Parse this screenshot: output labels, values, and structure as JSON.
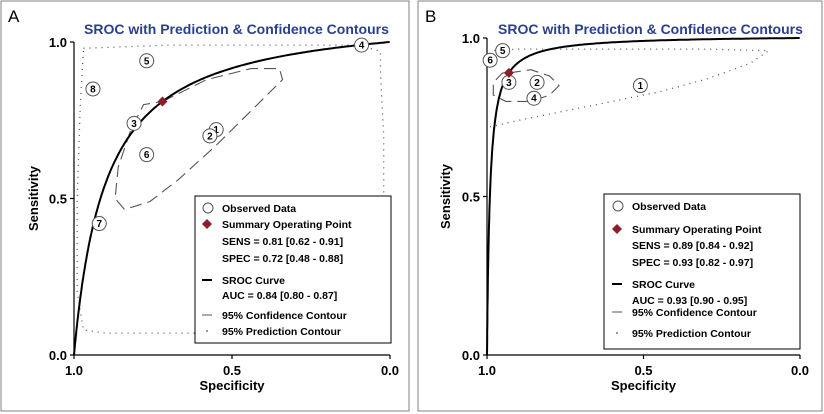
{
  "chart_data": [
    {
      "panel": "A",
      "type": "scatter",
      "title": "SROC with Prediction & Confidence Contours",
      "xlabel": "Specificity",
      "ylabel": "Sensitivity",
      "xlim": [
        1.0,
        0.0
      ],
      "ylim": [
        0.0,
        1.0
      ],
      "x_ticks": [
        1.0,
        0.5,
        0.0
      ],
      "x_tick_labels": [
        "1.0",
        "0.5",
        "0.0"
      ],
      "y_ticks": [
        0.0,
        0.5,
        1.0
      ],
      "y_tick_labels": [
        "0.0",
        "0.5",
        "1.0"
      ],
      "observed": [
        {
          "label": "1",
          "spec": 0.55,
          "sens": 0.72
        },
        {
          "label": "2",
          "spec": 0.57,
          "sens": 0.7
        },
        {
          "label": "3",
          "spec": 0.81,
          "sens": 0.74
        },
        {
          "label": "4",
          "spec": 0.09,
          "sens": 0.99
        },
        {
          "label": "5",
          "spec": 0.77,
          "sens": 0.94
        },
        {
          "label": "6",
          "spec": 0.77,
          "sens": 0.64
        },
        {
          "label": "7",
          "spec": 0.92,
          "sens": 0.42
        },
        {
          "label": "8",
          "spec": 0.94,
          "sens": 0.85
        }
      ],
      "summary_point": {
        "spec": 0.72,
        "sens": 0.81
      },
      "sroc_auc": 0.84,
      "confidence_contour": [
        [
          0.72,
          0.81
        ],
        [
          0.58,
          0.88
        ],
        [
          0.44,
          0.915
        ],
        [
          0.35,
          0.915
        ],
        [
          0.34,
          0.88
        ],
        [
          0.42,
          0.8
        ],
        [
          0.55,
          0.67
        ],
        [
          0.67,
          0.56
        ],
        [
          0.76,
          0.49
        ],
        [
          0.84,
          0.465
        ],
        [
          0.87,
          0.5
        ],
        [
          0.86,
          0.6
        ],
        [
          0.82,
          0.72
        ],
        [
          0.78,
          0.8
        ],
        [
          0.72,
          0.81
        ]
      ],
      "prediction_contour": [
        [
          0.97,
          0.98
        ],
        [
          0.7,
          0.99
        ],
        [
          0.4,
          0.99
        ],
        [
          0.1,
          0.99
        ],
        [
          0.03,
          0.97
        ],
        [
          0.03,
          0.9
        ],
        [
          0.02,
          0.7
        ],
        [
          0.02,
          0.4
        ],
        [
          0.02,
          0.12
        ],
        [
          0.05,
          0.07
        ],
        [
          0.3,
          0.07
        ],
        [
          0.6,
          0.07
        ],
        [
          0.9,
          0.07
        ],
        [
          0.97,
          0.08
        ],
        [
          0.99,
          0.2
        ],
        [
          0.99,
          0.5
        ],
        [
          0.98,
          0.8
        ],
        [
          0.97,
          0.98
        ]
      ],
      "legend": {
        "observed": "Observed Data",
        "summary": "Summary  Operating Point",
        "sens": "SENS = 0.81 [0.62 - 0.91]",
        "spec": "SPEC = 0.72 [0.48 - 0.88]",
        "sroc": "SROC Curve",
        "auc": "AUC = 0.84 [0.80 - 0.87]",
        "conf": "95% Confidence Contour",
        "pred": "95% Prediction Contour"
      },
      "legend_placement": "bottom-right"
    },
    {
      "panel": "B",
      "type": "scatter",
      "title": "SROC with Prediction & Confidence Contours",
      "xlabel": "Specificity",
      "ylabel": "Sensitivity",
      "xlim": [
        1.0,
        0.0
      ],
      "ylim": [
        0.0,
        1.0
      ],
      "x_ticks": [
        1.0,
        0.5,
        0.0
      ],
      "x_tick_labels": [
        "1.0",
        "0.5",
        "0.0"
      ],
      "y_ticks": [
        0.0,
        0.5,
        1.0
      ],
      "y_tick_labels": [
        "0.0",
        "0.5",
        "1.0"
      ],
      "observed": [
        {
          "label": "1",
          "spec": 0.51,
          "sens": 0.85
        },
        {
          "label": "2",
          "spec": 0.84,
          "sens": 0.86
        },
        {
          "label": "3",
          "spec": 0.93,
          "sens": 0.86
        },
        {
          "label": "4",
          "spec": 0.85,
          "sens": 0.81
        },
        {
          "label": "5",
          "spec": 0.95,
          "sens": 0.96
        },
        {
          "label": "6",
          "spec": 0.99,
          "sens": 0.93
        }
      ],
      "summary_point": {
        "spec": 0.93,
        "sens": 0.89
      },
      "sroc_auc": 0.93,
      "confidence_contour": [
        [
          0.93,
          0.89
        ],
        [
          0.86,
          0.9
        ],
        [
          0.8,
          0.88
        ],
        [
          0.77,
          0.85
        ],
        [
          0.8,
          0.82
        ],
        [
          0.86,
          0.8
        ],
        [
          0.94,
          0.8
        ],
        [
          0.98,
          0.82
        ],
        [
          0.98,
          0.86
        ],
        [
          0.95,
          0.89
        ],
        [
          0.93,
          0.89
        ]
      ],
      "prediction_contour": [
        [
          0.99,
          0.72
        ],
        [
          0.9,
          0.74
        ],
        [
          0.75,
          0.77
        ],
        [
          0.6,
          0.8
        ],
        [
          0.45,
          0.83
        ],
        [
          0.3,
          0.87
        ],
        [
          0.16,
          0.92
        ],
        [
          0.1,
          0.96
        ],
        [
          0.3,
          0.965
        ],
        [
          0.6,
          0.965
        ],
        [
          0.9,
          0.965
        ],
        [
          0.99,
          0.96
        ]
      ],
      "legend": {
        "observed": "Observed Data",
        "summary": "Summary  Operating Point",
        "sens": "SENS = 0.89 [0.84 - 0.92]",
        "spec": "SPEC = 0.93 [0.82 - 0.97]",
        "sroc": "SROC Curve",
        "auc": "AUC = 0.93 [0.90 - 0.95]",
        "conf": "95% Confidence Contour",
        "pred": "95% Prediction Contour"
      },
      "legend_placement": "bottom-right"
    }
  ]
}
